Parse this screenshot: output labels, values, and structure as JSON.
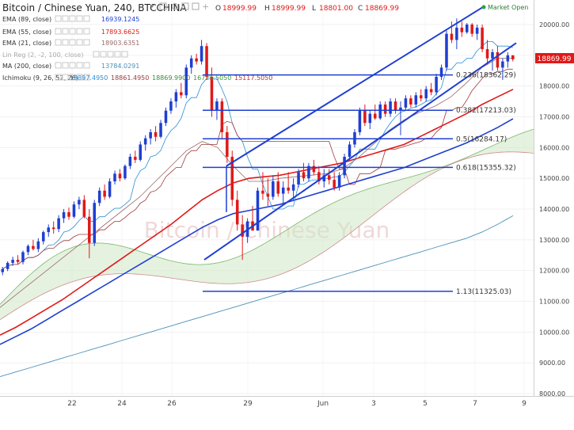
{
  "chart_data": {
    "type": "candlestick",
    "title": "Bitcoin / Chinese Yuan, 240, BTCCHINA",
    "ohlc": {
      "o_label": "O",
      "o": "18999.99",
      "h_label": "H",
      "h": "18999.99",
      "l_label": "L",
      "l": "18801.00",
      "c_label": "C",
      "c": "18869.99"
    },
    "market_status": "Market Open",
    "watermark": "Bitcoin / Chinese Yuan",
    "last_price": "18869.99",
    "ylim": [
      7800,
      20600
    ],
    "y_ticks": [
      "20000.00",
      "19000.00",
      "18000.00",
      "17000.00",
      "16000.00",
      "15000.00",
      "14000.00",
      "13000.00",
      "12000.00",
      "11000.00",
      "10000.00",
      "9000.00",
      "8000.00"
    ],
    "x_ticks": [
      "22",
      "24",
      "26",
      "29",
      "Jun",
      "3",
      "5",
      "7",
      "9"
    ],
    "indicators": [
      {
        "label": "EMA (89, close)",
        "value": "16939.1245",
        "color": "#1f3fd1"
      },
      {
        "label": "EMA (55, close)",
        "value": "17893.6625",
        "color": "#e01919"
      },
      {
        "label": "EMA (21, close)",
        "value": "18903.6351",
        "color": "#9a6b6b"
      },
      {
        "label": "Lin Reg (2, -2, 100, close)",
        "value": "",
        "color": "#b8b8b8"
      },
      {
        "label": "MA (200, close)",
        "value": "13784.0291",
        "color": "#4a90b8"
      },
      {
        "label": "Ichimoku (9, 26, 52, 26)",
        "values": [
          "18897.4950",
          "18861.4950",
          "18869.9900",
          "16725.5050",
          "15117.5050"
        ],
        "colors": [
          "#2b8fd8",
          "#9b3b3b",
          "#3a8a3a",
          "#3a9a3a",
          "#c03030"
        ]
      }
    ],
    "fib_levels": [
      {
        "ratio": "0.236",
        "label": "0.236(18362.29)",
        "price": 18362.29
      },
      {
        "ratio": "0.382",
        "label": "0.382(17213.03)",
        "price": 17213.03
      },
      {
        "ratio": "0.5",
        "label": "0.5(16284.17)",
        "price": 16284.17
      },
      {
        "ratio": "0.618",
        "label": "0.618(15355.32)",
        "price": 15355.32
      },
      {
        "ratio": "1.13",
        "label": "1.13(11325.03)",
        "price": 11325.03
      }
    ],
    "candles": [
      [
        11950,
        12120,
        11850,
        12050
      ],
      [
        12050,
        12300,
        11980,
        12250
      ],
      [
        12250,
        12450,
        12150,
        12350
      ],
      [
        12350,
        12500,
        12200,
        12280
      ],
      [
        12280,
        12650,
        12200,
        12600
      ],
      [
        12600,
        12850,
        12500,
        12800
      ],
      [
        12800,
        13000,
        12650,
        12700
      ],
      [
        12700,
        13050,
        12600,
        12950
      ],
      [
        12950,
        13300,
        12850,
        13250
      ],
      [
        13250,
        13500,
        13100,
        13400
      ],
      [
        13400,
        13600,
        13200,
        13350
      ],
      [
        13350,
        13800,
        13250,
        13700
      ],
      [
        13700,
        14000,
        13550,
        13900
      ],
      [
        13900,
        14050,
        13650,
        13750
      ],
      [
        13750,
        14250,
        13700,
        14150
      ],
      [
        14150,
        14400,
        14000,
        14300
      ],
      [
        14300,
        14450,
        13700,
        13750
      ],
      [
        13750,
        14000,
        12400,
        12900
      ],
      [
        12900,
        14300,
        12800,
        14200
      ],
      [
        14200,
        14700,
        14100,
        14600
      ],
      [
        14600,
        14800,
        14300,
        14400
      ],
      [
        14400,
        15000,
        14350,
        14900
      ],
      [
        14900,
        15250,
        14800,
        15150
      ],
      [
        15150,
        15300,
        14900,
        15000
      ],
      [
        15000,
        15450,
        14950,
        15400
      ],
      [
        15400,
        15800,
        15300,
        15700
      ],
      [
        15700,
        15900,
        15500,
        15600
      ],
      [
        15600,
        16200,
        15550,
        16100
      ],
      [
        16100,
        16400,
        15900,
        16300
      ],
      [
        16300,
        16600,
        16100,
        16500
      ],
      [
        16500,
        16700,
        16200,
        16350
      ],
      [
        16350,
        16900,
        16300,
        16800
      ],
      [
        16800,
        17300,
        16700,
        17200
      ],
      [
        17200,
        17600,
        17100,
        17500
      ],
      [
        17500,
        17900,
        17300,
        17800
      ],
      [
        17800,
        18100,
        17600,
        17700
      ],
      [
        17700,
        18700,
        17600,
        18600
      ],
      [
        18600,
        19000,
        18400,
        18900
      ],
      [
        18900,
        19050,
        18700,
        18800
      ],
      [
        18800,
        19500,
        18700,
        19300
      ],
      [
        19300,
        19400,
        18200,
        18300
      ],
      [
        18300,
        18600,
        17000,
        17200
      ],
      [
        17200,
        17600,
        16900,
        17500
      ],
      [
        17500,
        17600,
        16300,
        16500
      ],
      [
        16500,
        16700,
        15500,
        15700
      ],
      [
        15700,
        15900,
        14100,
        14300
      ],
      [
        14300,
        14600,
        13300,
        13500
      ],
      [
        13500,
        13800,
        12350,
        13100
      ],
      [
        13100,
        13700,
        12900,
        13600
      ],
      [
        13600,
        14100,
        13400,
        13300
      ],
      [
        13300,
        14700,
        13300,
        14600
      ],
      [
        14600,
        15200,
        14300,
        14500
      ],
      [
        14500,
        15000,
        14100,
        14400
      ],
      [
        14400,
        15100,
        14300,
        14900
      ],
      [
        14900,
        15200,
        14400,
        14500
      ],
      [
        14500,
        14900,
        14200,
        14700
      ],
      [
        14700,
        15200,
        14500,
        14600
      ],
      [
        14600,
        15000,
        14300,
        14800
      ],
      [
        14800,
        15300,
        14700,
        15200
      ],
      [
        15200,
        15500,
        14900,
        15000
      ],
      [
        15000,
        15500,
        14900,
        15400
      ],
      [
        15400,
        15600,
        15100,
        15200
      ],
      [
        15200,
        15400,
        14800,
        14900
      ],
      [
        14900,
        15300,
        14700,
        15100
      ],
      [
        15100,
        15300,
        14800,
        14950
      ],
      [
        14950,
        15200,
        14600,
        14700
      ],
      [
        14700,
        15200,
        14600,
        15100
      ],
      [
        15100,
        15800,
        15000,
        15700
      ],
      [
        15700,
        16200,
        15600,
        16100
      ],
      [
        16100,
        16600,
        16000,
        16500
      ],
      [
        16500,
        17300,
        16400,
        17200
      ],
      [
        17200,
        17400,
        16700,
        16800
      ],
      [
        16800,
        17200,
        16600,
        17100
      ],
      [
        17100,
        17400,
        16900,
        16950
      ],
      [
        16950,
        17500,
        16900,
        17400
      ],
      [
        17400,
        17500,
        17000,
        17100
      ],
      [
        17100,
        17600,
        17000,
        17500
      ],
      [
        17500,
        17600,
        17100,
        17200
      ],
      [
        17200,
        17500,
        16400,
        17300
      ],
      [
        17300,
        17700,
        17200,
        17600
      ],
      [
        17600,
        17700,
        17300,
        17400
      ],
      [
        17400,
        17800,
        17300,
        17700
      ],
      [
        17700,
        17900,
        17500,
        17600
      ],
      [
        17600,
        18000,
        17500,
        17900
      ],
      [
        17900,
        18100,
        17700,
        17800
      ],
      [
        17800,
        18400,
        17700,
        18300
      ],
      [
        18300,
        18700,
        18200,
        18600
      ],
      [
        18600,
        19800,
        18500,
        19700
      ],
      [
        19700,
        20100,
        19400,
        19500
      ],
      [
        19500,
        20200,
        19200,
        19900
      ],
      [
        19900,
        20100,
        19600,
        19750
      ],
      [
        19750,
        20050,
        19700,
        20000
      ],
      [
        20000,
        20050,
        19600,
        19700
      ],
      [
        19700,
        20000,
        19500,
        19900
      ],
      [
        19900,
        20000,
        19100,
        19200
      ],
      [
        19200,
        19500,
        18700,
        18900
      ],
      [
        18900,
        19200,
        18500,
        19100
      ],
      [
        19100,
        19300,
        18500,
        18600
      ],
      [
        18600,
        18900,
        18200,
        18800
      ],
      [
        18800,
        19100,
        18600,
        19000
      ],
      [
        19000,
        19000,
        18801,
        18870
      ]
    ],
    "ema89": [
      9600,
      9850,
      10100,
      10400,
      10700,
      11000,
      11300,
      11600,
      11900,
      12200,
      12500,
      12800,
      13100,
      13400,
      13650,
      13850,
      13950,
      14050,
      14150,
      14300,
      14450,
      14600,
      14750,
      14900,
      15050,
      15200,
      15350,
      15550,
      15750,
      15950,
      16150,
      16400,
      16650,
      16939
    ],
    "ema55": [
      9900,
      10150,
      10450,
      10750,
      11050,
      11400,
      11750,
      12100,
      12450,
      12800,
      13150,
      13500,
      13900,
      14300,
      14600,
      14850,
      15000,
      15050,
      15100,
      15200,
      15300,
      15400,
      15500,
      15650,
      15800,
      15950,
      16100,
      16350,
      16600,
      16850,
      17100,
      17400,
      17650,
      17894
    ],
    "ema21": [
      10800,
      11200,
      11600,
      12000,
      12400,
      12800,
      13200,
      13600,
      14000,
      14400,
      14900,
      15400,
      15900,
      16200,
      16000,
      15400,
      14900,
      14900,
      15000,
      15050,
      15100,
      15150,
      15300,
      15650,
      16100,
      16550,
      16900,
      17150,
      17350,
      17650,
      18100,
      18600,
      18900,
      18904
    ],
    "ma200": [
      8550,
      8700,
      8850,
      9000,
      9150,
      9300,
      9450,
      9600,
      9750,
      9900,
      10050,
      10200,
      10350,
      10500,
      10650,
      10800,
      10950,
      11100,
      11250,
      11400,
      11550,
      11700,
      11850,
      12000,
      12150,
      12300,
      12450,
      12600,
      12750,
      12900,
      13050,
      13250,
      13500,
      13784
    ]
  }
}
